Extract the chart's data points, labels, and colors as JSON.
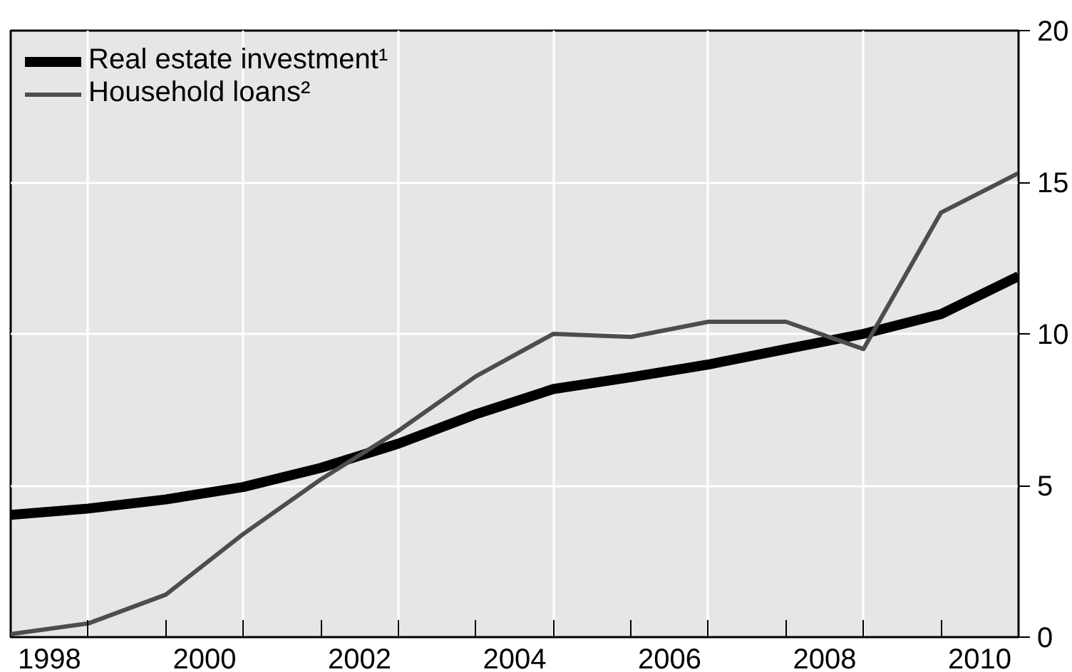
{
  "chart_data": {
    "type": "line",
    "x": [
      1998,
      1999,
      2000,
      2001,
      2002,
      2003,
      2004,
      2005,
      2006,
      2007,
      2008,
      2009,
      2010,
      2011
    ],
    "series": [
      {
        "name": "Real estate investment¹",
        "color": "#000000",
        "values": [
          4.03,
          4.24,
          4.54,
          4.95,
          5.58,
          6.38,
          7.35,
          8.18,
          8.57,
          8.99,
          9.5,
          10.0,
          10.65,
          11.9
        ]
      },
      {
        "name": "Household loans²",
        "color": "#4d4d4d",
        "values": [
          0.1,
          0.45,
          1.4,
          3.4,
          5.2,
          6.8,
          8.6,
          10.0,
          9.9,
          10.4,
          10.4,
          9.5,
          14.0,
          15.3
        ]
      }
    ],
    "xlim": [
      1998,
      2011
    ],
    "xticks": [
      {
        "value": 1998.5,
        "label": "1998"
      },
      {
        "value": 2000.5,
        "label": "2000"
      },
      {
        "value": 2002.5,
        "label": "2002"
      },
      {
        "value": 2004.5,
        "label": "2004"
      },
      {
        "value": 2006.5,
        "label": "2006"
      },
      {
        "value": 2008.5,
        "label": "2008"
      },
      {
        "value": 2010.5,
        "label": "2010"
      },
      {
        "value": 1999,
        "label": null
      },
      {
        "value": 2000,
        "label": null
      },
      {
        "value": 2001,
        "label": null
      },
      {
        "value": 2002,
        "label": null
      },
      {
        "value": 2003,
        "label": null
      },
      {
        "value": 2004,
        "label": null
      },
      {
        "value": 2005,
        "label": null
      },
      {
        "value": 2006,
        "label": null
      },
      {
        "value": 2007,
        "label": null
      },
      {
        "value": 2008,
        "label": null
      },
      {
        "value": 2009,
        "label": null
      },
      {
        "value": 2010,
        "label": null
      }
    ],
    "ylim": [
      0,
      20
    ],
    "yticks": [
      0,
      5,
      10,
      15,
      20
    ],
    "grid": true,
    "legend": "top left",
    "marker": "none",
    "line_style": "solid"
  }
}
